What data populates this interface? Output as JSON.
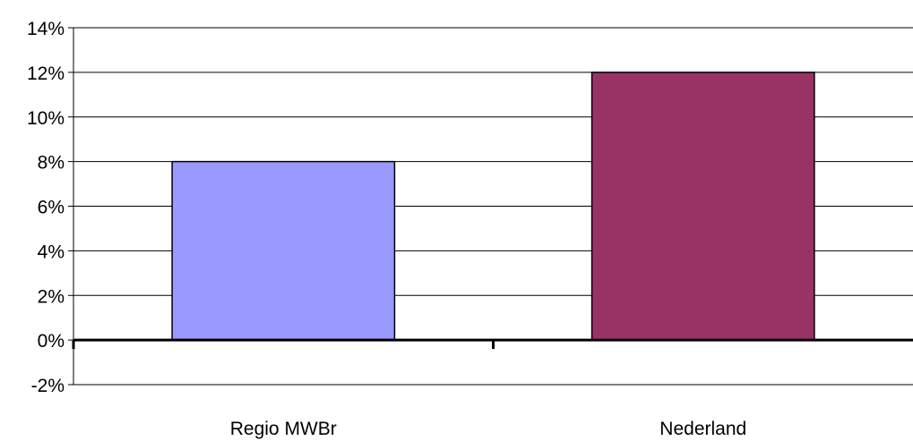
{
  "chart_data": {
    "type": "bar",
    "categories": [
      "Regio MWBr",
      "Nederland"
    ],
    "values": [
      8,
      12
    ],
    "colors": [
      "#9999ff",
      "#993366"
    ],
    "y_tick_labels": [
      "-2%",
      "0%",
      "2%",
      "4%",
      "6%",
      "8%",
      "10%",
      "12%",
      "14%"
    ],
    "y_ticks": [
      -2,
      0,
      2,
      4,
      6,
      8,
      10,
      12,
      14
    ],
    "ylim": [
      -2,
      14
    ],
    "y_unit": "%",
    "grid": true,
    "legend": "none"
  }
}
